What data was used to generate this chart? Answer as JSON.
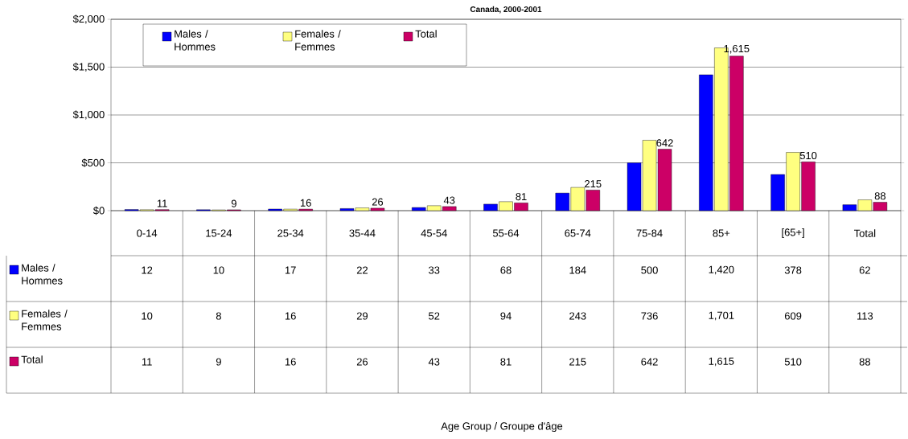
{
  "chart_data": {
    "type": "bar",
    "title": "Canada, 2000-2001",
    "categories": [
      "0-14",
      "15-24",
      "25-34",
      "35-44",
      "45-54",
      "55-64",
      "65-74",
      "75-84",
      "85+",
      "[65+]",
      "Total"
    ],
    "series": [
      {
        "name": "Males / Hommes",
        "color": "#0000ff",
        "values": [
          12,
          10,
          17,
          22,
          33,
          68,
          184,
          500,
          1420,
          378,
          62
        ],
        "value_labels": [
          "12",
          "10",
          "17",
          "22",
          "33",
          "68",
          "184",
          "500",
          "1,420",
          "378",
          "62"
        ]
      },
      {
        "name": "Females / Femmes",
        "color": "#ffff80",
        "values": [
          10,
          8,
          16,
          29,
          52,
          94,
          243,
          736,
          1701,
          609,
          113
        ],
        "value_labels": [
          "10",
          "8",
          "16",
          "29",
          "52",
          "94",
          "243",
          "736",
          "1,701",
          "609",
          "113"
        ]
      },
      {
        "name": "Total",
        "color": "#cc0066",
        "values": [
          11,
          9,
          16,
          26,
          43,
          81,
          215,
          642,
          1615,
          510,
          88
        ],
        "value_labels": [
          "11",
          "9",
          "16",
          "26",
          "43",
          "81",
          "215",
          "642",
          "1,615",
          "510",
          "88"
        ]
      }
    ],
    "annotations": [
      "Age Group / Groupe d'âge"
    ],
    "ylim": [
      0,
      2000
    ],
    "yticks": [
      {
        "value": 0,
        "label": "$0"
      },
      {
        "value": 500,
        "label": "$500"
      },
      {
        "value": 1000,
        "label": "$1,000"
      },
      {
        "value": 1500,
        "label": "$1,500"
      },
      {
        "value": 2000,
        "label": "$2,000"
      }
    ],
    "grid": "y",
    "legend": "top left",
    "data_labels": true
  }
}
